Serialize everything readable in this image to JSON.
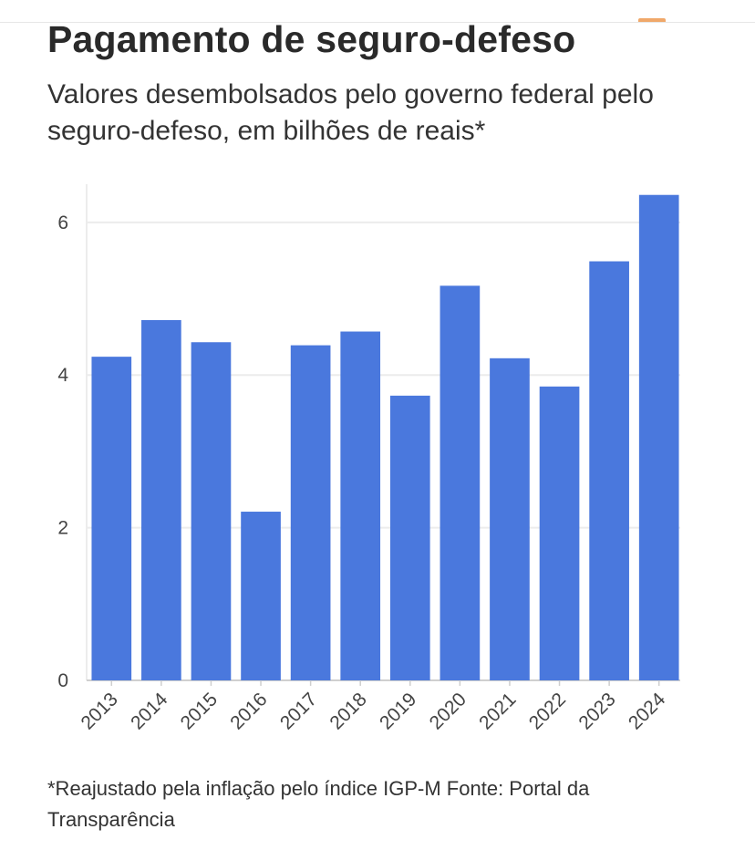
{
  "header": {
    "title": "Pagamento de seguro-defeso",
    "subtitle": "Valores desembolsados pelo governo federal pelo seguro-defeso, em bilhões de reais*"
  },
  "footer": {
    "note": "*Reajustado pela inflação pelo índice IGP-M Fonte: Portal da Transparência"
  },
  "colors": {
    "bar": "#4a78dd",
    "grid": "#ececec",
    "axis": "#cfcfcf"
  },
  "chart_data": {
    "type": "bar",
    "title": "Pagamento de seguro-defeso",
    "subtitle": "Valores desembolsados pelo governo federal pelo seguro-defeso, em bilhões de reais*",
    "xlabel": "",
    "ylabel": "",
    "categories": [
      "2013",
      "2014",
      "2015",
      "2016",
      "2017",
      "2018",
      "2019",
      "2020",
      "2021",
      "2022",
      "2023",
      "2024"
    ],
    "values": [
      4.24,
      4.72,
      4.43,
      2.21,
      4.39,
      4.57,
      3.73,
      5.17,
      4.22,
      3.85,
      5.49,
      6.36
    ],
    "ylim": [
      0,
      6.5
    ],
    "yticks": [
      0,
      2,
      4,
      6
    ],
    "grid": true,
    "legend": "none"
  }
}
